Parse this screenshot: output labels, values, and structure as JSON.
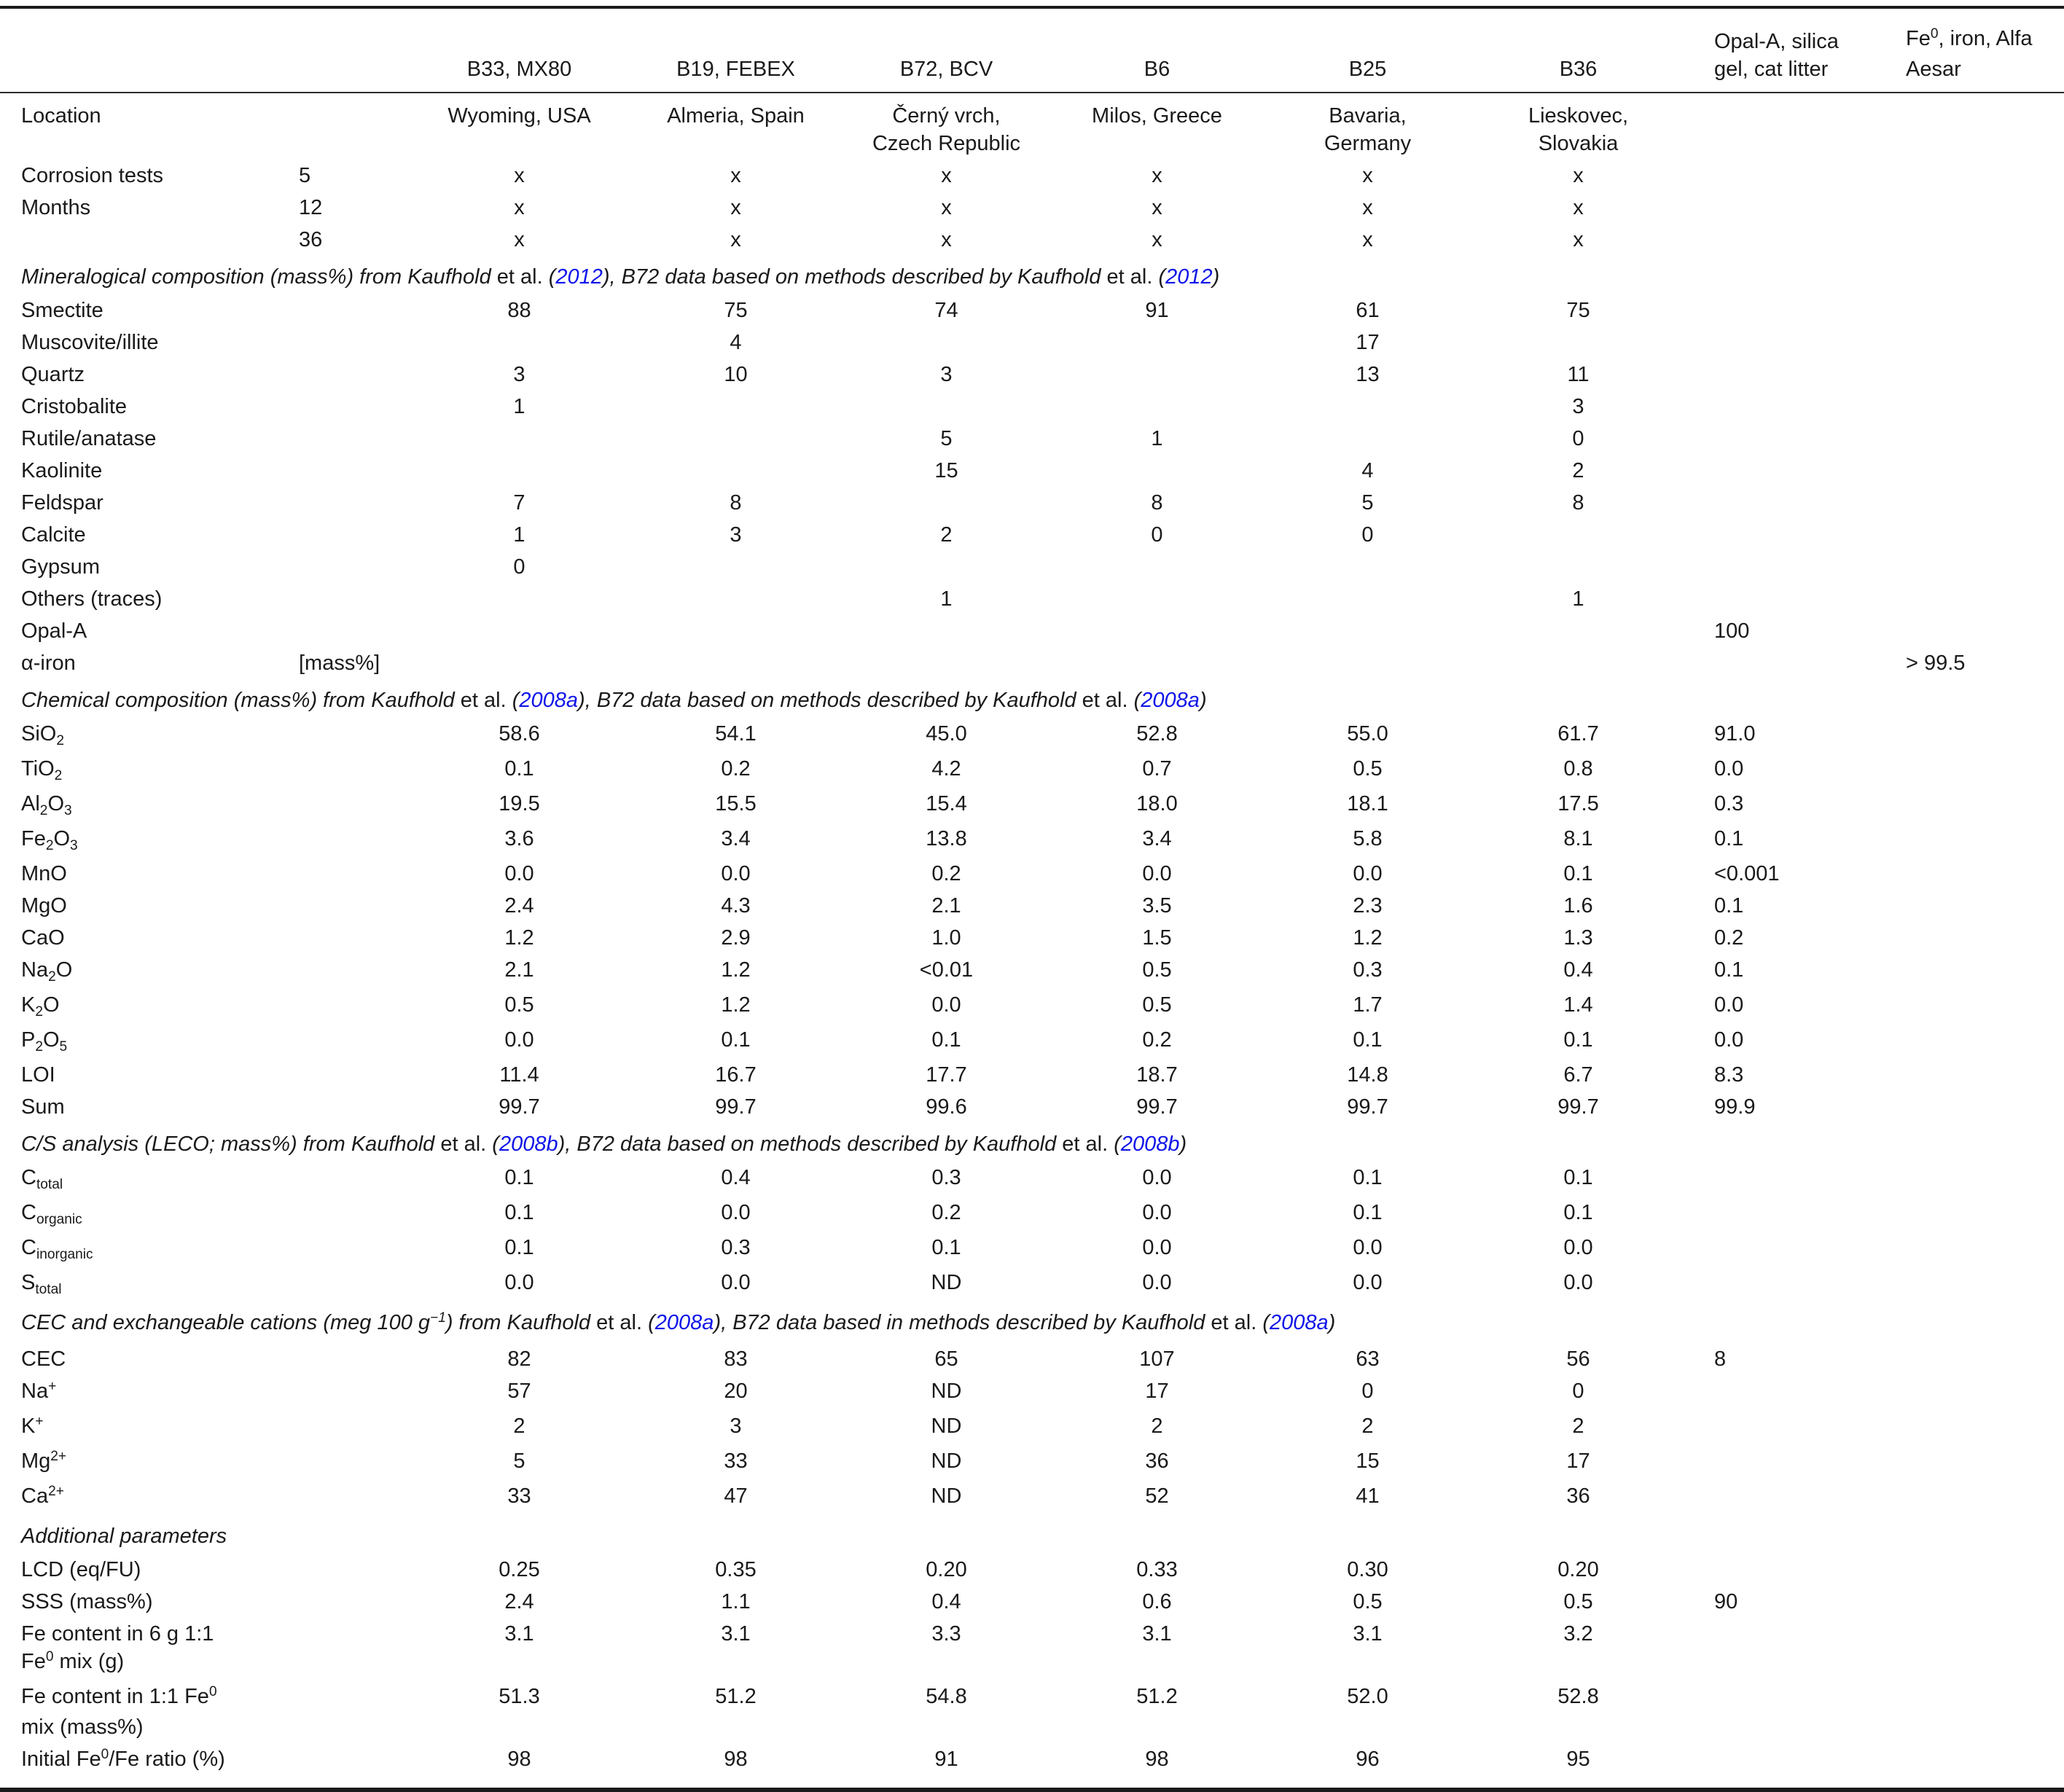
{
  "page": {
    "background": "#ffffff",
    "text_color": "#1a1a1a",
    "citation_link_color": "#0f14e8",
    "rule_color": "#1b1b1b"
  },
  "table": {
    "header_cols": [
      "",
      "",
      "B33, MX80",
      "B19, FEBEX",
      "B72, BCV",
      "B6",
      "B25",
      "B36",
      {
        "segs": [
          {
            "t": "Opal-A, silica"
          },
          {
            "br": true
          },
          {
            "t": "gel, cat litter"
          }
        ]
      },
      {
        "segs": [
          {
            "t": "Fe"
          },
          {
            "t": "0",
            "sup": true
          },
          {
            "t": ", iron, Alfa"
          },
          {
            "br": true
          },
          {
            "t": "Aesar"
          }
        ]
      }
    ],
    "rows": [
      {
        "kind": "data",
        "label": "Location",
        "sub": "",
        "cells": [
          "Wyoming, USA",
          "Almeria, Spain",
          "Černý vrch,\nCzech Republic",
          "Milos, Greece",
          "Bavaria,\nGermany",
          "Lieskovec,\nSlovakia",
          "",
          ""
        ]
      },
      {
        "kind": "data",
        "label": "Corrosion tests",
        "sub": "5",
        "cells": [
          "x",
          "x",
          "x",
          "x",
          "x",
          "x",
          "",
          ""
        ]
      },
      {
        "kind": "data",
        "label": "Months",
        "sub": "12",
        "cells": [
          "x",
          "x",
          "x",
          "x",
          "x",
          "x",
          "",
          ""
        ]
      },
      {
        "kind": "data",
        "label": "",
        "sub": "36",
        "cells": [
          "x",
          "x",
          "x",
          "x",
          "x",
          "x",
          "",
          ""
        ]
      },
      {
        "kind": "section",
        "segs": [
          {
            "t": "Mineralogical composition (mass%) from Kaufhold ",
            "i": true
          },
          {
            "t": "et al. "
          },
          {
            "t": "(",
            "i": true
          },
          {
            "t": "2012",
            "i": true,
            "link": true
          },
          {
            "t": "), B72 data based on methods described by Kaufhold ",
            "i": true
          },
          {
            "t": "et al. "
          },
          {
            "t": "(",
            "i": true
          },
          {
            "t": "2012",
            "i": true,
            "link": true
          },
          {
            "t": ")",
            "i": true
          }
        ]
      },
      {
        "kind": "data",
        "label": "Smectite",
        "sub": "",
        "cells": [
          "88",
          "75",
          "74",
          "91",
          "61",
          "75",
          "",
          ""
        ]
      },
      {
        "kind": "data",
        "label": "Muscovite/illite",
        "sub": "",
        "cells": [
          "",
          "4",
          "",
          "",
          "17",
          "",
          "",
          ""
        ]
      },
      {
        "kind": "data",
        "label": "Quartz",
        "sub": "",
        "cells": [
          "3",
          "10",
          "3",
          "",
          "13",
          "11",
          "",
          ""
        ]
      },
      {
        "kind": "data",
        "label": "Cristobalite",
        "sub": "",
        "cells": [
          "1",
          "",
          "",
          "",
          "",
          "3",
          "",
          ""
        ]
      },
      {
        "kind": "data",
        "label": "Rutile/anatase",
        "sub": "",
        "cells": [
          "",
          "",
          "5",
          "1",
          "",
          "0",
          "",
          ""
        ]
      },
      {
        "kind": "data",
        "label": "Kaolinite",
        "sub": "",
        "cells": [
          "",
          "",
          "15",
          "",
          "4",
          "2",
          "",
          ""
        ]
      },
      {
        "kind": "data",
        "label": "Feldspar",
        "sub": "",
        "cells": [
          "7",
          "8",
          "",
          "8",
          "5",
          "8",
          "",
          ""
        ]
      },
      {
        "kind": "data",
        "label": "Calcite",
        "sub": "",
        "cells": [
          "1",
          "3",
          "2",
          "0",
          "0",
          "",
          "",
          ""
        ]
      },
      {
        "kind": "data",
        "label": "Gypsum",
        "sub": "",
        "cells": [
          "0",
          "",
          "",
          "",
          "",
          "",
          "",
          ""
        ]
      },
      {
        "kind": "data",
        "label": "Others (traces)",
        "sub": "",
        "cells": [
          "",
          "",
          "1",
          "",
          "",
          "1",
          "",
          ""
        ]
      },
      {
        "kind": "data",
        "label": "Opal-A",
        "sub": "",
        "cells": [
          "",
          "",
          "",
          "",
          "",
          "",
          "100",
          ""
        ]
      },
      {
        "kind": "data",
        "label": "α-iron",
        "sub": "[mass%]",
        "cells": [
          "",
          "",
          "",
          "",
          "",
          "",
          "",
          "> 99.5"
        ]
      },
      {
        "kind": "section",
        "segs": [
          {
            "t": "Chemical composition (mass%) from Kaufhold ",
            "i": true
          },
          {
            "t": "et al. "
          },
          {
            "t": "(",
            "i": true
          },
          {
            "t": "2008a",
            "i": true,
            "link": true
          },
          {
            "t": "), B72 data based on methods described by Kaufhold ",
            "i": true
          },
          {
            "t": "et al. "
          },
          {
            "t": "(",
            "i": true
          },
          {
            "t": "2008a",
            "i": true,
            "link": true
          },
          {
            "t": ")",
            "i": true
          }
        ]
      },
      {
        "kind": "data",
        "label": {
          "segs": [
            {
              "t": "SiO"
            },
            {
              "t": "2",
              "sub": true
            }
          ]
        },
        "sub": "",
        "cells": [
          "58.6",
          "54.1",
          "45.0",
          "52.8",
          "55.0",
          "61.7",
          "91.0",
          ""
        ]
      },
      {
        "kind": "data",
        "label": {
          "segs": [
            {
              "t": "TiO"
            },
            {
              "t": "2",
              "sub": true
            }
          ]
        },
        "sub": "",
        "cells": [
          "0.1",
          "0.2",
          "4.2",
          "0.7",
          "0.5",
          "0.8",
          "0.0",
          ""
        ]
      },
      {
        "kind": "data",
        "label": {
          "segs": [
            {
              "t": "Al"
            },
            {
              "t": "2",
              "sub": true
            },
            {
              "t": "O"
            },
            {
              "t": "3",
              "sub": true
            }
          ]
        },
        "sub": "",
        "cells": [
          "19.5",
          "15.5",
          "15.4",
          "18.0",
          "18.1",
          "17.5",
          "0.3",
          ""
        ]
      },
      {
        "kind": "data",
        "label": {
          "segs": [
            {
              "t": "Fe"
            },
            {
              "t": "2",
              "sub": true
            },
            {
              "t": "O"
            },
            {
              "t": "3",
              "sub": true
            }
          ]
        },
        "sub": "",
        "cells": [
          "3.6",
          "3.4",
          "13.8",
          "3.4",
          "5.8",
          "8.1",
          "0.1",
          ""
        ]
      },
      {
        "kind": "data",
        "label": "MnO",
        "sub": "",
        "cells": [
          "0.0",
          "0.0",
          "0.2",
          "0.0",
          "0.0",
          "0.1",
          "<0.001",
          ""
        ]
      },
      {
        "kind": "data",
        "label": "MgO",
        "sub": "",
        "cells": [
          "2.4",
          "4.3",
          "2.1",
          "3.5",
          "2.3",
          "1.6",
          "0.1",
          ""
        ]
      },
      {
        "kind": "data",
        "label": "CaO",
        "sub": "",
        "cells": [
          "1.2",
          "2.9",
          "1.0",
          "1.5",
          "1.2",
          "1.3",
          "0.2",
          ""
        ]
      },
      {
        "kind": "data",
        "label": {
          "segs": [
            {
              "t": "Na"
            },
            {
              "t": "2",
              "sub": true
            },
            {
              "t": "O"
            }
          ]
        },
        "sub": "",
        "cells": [
          "2.1",
          "1.2",
          "<0.01",
          "0.5",
          "0.3",
          "0.4",
          "0.1",
          ""
        ]
      },
      {
        "kind": "data",
        "label": {
          "segs": [
            {
              "t": "K"
            },
            {
              "t": "2",
              "sub": true
            },
            {
              "t": "O"
            }
          ]
        },
        "sub": "",
        "cells": [
          "0.5",
          "1.2",
          "0.0",
          "0.5",
          "1.7",
          "1.4",
          "0.0",
          ""
        ]
      },
      {
        "kind": "data",
        "label": {
          "segs": [
            {
              "t": "P"
            },
            {
              "t": "2",
              "sub": true
            },
            {
              "t": "O"
            },
            {
              "t": "5",
              "sub": true
            }
          ]
        },
        "sub": "",
        "cells": [
          "0.0",
          "0.1",
          "0.1",
          "0.2",
          "0.1",
          "0.1",
          "0.0",
          ""
        ]
      },
      {
        "kind": "data",
        "label": "LOI",
        "sub": "",
        "cells": [
          "11.4",
          "16.7",
          "17.7",
          "18.7",
          "14.8",
          "6.7",
          "8.3",
          ""
        ]
      },
      {
        "kind": "data",
        "label": "Sum",
        "sub": "",
        "cells": [
          "99.7",
          "99.7",
          "99.6",
          "99.7",
          "99.7",
          "99.7",
          "99.9",
          ""
        ]
      },
      {
        "kind": "section",
        "segs": [
          {
            "t": "C/S analysis (LECO; mass%) from Kaufhold ",
            "i": true
          },
          {
            "t": "et al. "
          },
          {
            "t": "(",
            "i": true
          },
          {
            "t": "2008b",
            "i": true,
            "link": true
          },
          {
            "t": "), B72 data based on methods described by Kaufhold ",
            "i": true
          },
          {
            "t": "et al. "
          },
          {
            "t": "(",
            "i": true
          },
          {
            "t": "2008b",
            "i": true,
            "link": true
          },
          {
            "t": ")",
            "i": true
          }
        ]
      },
      {
        "kind": "data",
        "label": {
          "segs": [
            {
              "t": "C"
            },
            {
              "t": "total",
              "sub": true
            }
          ]
        },
        "sub": "",
        "cells": [
          "0.1",
          "0.4",
          "0.3",
          "0.0",
          "0.1",
          "0.1",
          "",
          ""
        ]
      },
      {
        "kind": "data",
        "label": {
          "segs": [
            {
              "t": "C"
            },
            {
              "t": "organic",
              "sub": true
            }
          ]
        },
        "sub": "",
        "cells": [
          "0.1",
          "0.0",
          "0.2",
          "0.0",
          "0.1",
          "0.1",
          "",
          ""
        ]
      },
      {
        "kind": "data",
        "label": {
          "segs": [
            {
              "t": "C"
            },
            {
              "t": "inorganic",
              "sub": true
            }
          ]
        },
        "sub": "",
        "cells": [
          "0.1",
          "0.3",
          "0.1",
          "0.0",
          "0.0",
          "0.0",
          "",
          ""
        ]
      },
      {
        "kind": "data",
        "label": {
          "segs": [
            {
              "t": "S"
            },
            {
              "t": "total",
              "sub": true
            }
          ]
        },
        "sub": "",
        "cells": [
          "0.0",
          "0.0",
          "ND",
          "0.0",
          "0.0",
          "0.0",
          "",
          ""
        ]
      },
      {
        "kind": "section",
        "segs": [
          {
            "t": "CEC and exchangeable cations (meg 100 g",
            "i": true
          },
          {
            "t": "−1",
            "sup": true,
            "i": true
          },
          {
            "t": ") from Kaufhold ",
            "i": true
          },
          {
            "t": "et al. "
          },
          {
            "t": "(",
            "i": true
          },
          {
            "t": "2008a",
            "i": true,
            "link": true
          },
          {
            "t": "), B72 data based in methods described by Kaufhold ",
            "i": true
          },
          {
            "t": "et al. "
          },
          {
            "t": "(",
            "i": true
          },
          {
            "t": "2008a",
            "i": true,
            "link": true
          },
          {
            "t": ")",
            "i": true
          }
        ]
      },
      {
        "kind": "data",
        "label": "CEC",
        "sub": "",
        "cells": [
          "82",
          "83",
          "65",
          "107",
          "63",
          "56",
          "8",
          ""
        ]
      },
      {
        "kind": "data",
        "label": {
          "segs": [
            {
              "t": "Na"
            },
            {
              "t": "+",
              "sup": true
            }
          ]
        },
        "sub": "",
        "cells": [
          "57",
          "20",
          "ND",
          "17",
          "0",
          "0",
          "",
          ""
        ]
      },
      {
        "kind": "data",
        "label": {
          "segs": [
            {
              "t": "K"
            },
            {
              "t": "+",
              "sup": true
            }
          ]
        },
        "sub": "",
        "cells": [
          "2",
          "3",
          "ND",
          "2",
          "2",
          "2",
          "",
          ""
        ]
      },
      {
        "kind": "data",
        "label": {
          "segs": [
            {
              "t": "Mg"
            },
            {
              "t": "2+",
              "sup": true
            }
          ]
        },
        "sub": "",
        "cells": [
          "5",
          "33",
          "ND",
          "36",
          "15",
          "17",
          "",
          ""
        ]
      },
      {
        "kind": "data",
        "label": {
          "segs": [
            {
              "t": "Ca"
            },
            {
              "t": "2+",
              "sup": true
            }
          ]
        },
        "sub": "",
        "cells": [
          "33",
          "47",
          "ND",
          "52",
          "41",
          "36",
          "",
          ""
        ]
      },
      {
        "kind": "section",
        "segs": [
          {
            "t": "Additional parameters",
            "i": true
          }
        ]
      },
      {
        "kind": "data",
        "label": "LCD (eq/FU)",
        "sub": "",
        "cells": [
          "0.25",
          "0.35",
          "0.20",
          "0.33",
          "0.30",
          "0.20",
          "",
          ""
        ]
      },
      {
        "kind": "data",
        "label": "SSS (mass%)",
        "sub": "",
        "cells": [
          "2.4",
          "1.1",
          "0.4",
          "0.6",
          "0.5",
          "0.5",
          "90",
          ""
        ]
      },
      {
        "kind": "data",
        "label": {
          "segs": [
            {
              "t": "Fe content in 6 g 1:1"
            },
            {
              "br": true
            },
            {
              "t": "Fe"
            },
            {
              "t": "0",
              "sup": true
            },
            {
              "t": " mix (g)"
            }
          ]
        },
        "sub": "",
        "cells": [
          "3.1",
          "3.1",
          "3.3",
          "3.1",
          "3.1",
          "3.2",
          "",
          ""
        ]
      },
      {
        "kind": "data",
        "label": {
          "segs": [
            {
              "t": "Fe content in 1:1 Fe"
            },
            {
              "t": "0",
              "sup": true
            },
            {
              "br": true
            },
            {
              "t": "mix (mass%)"
            }
          ]
        },
        "sub": "",
        "cells": [
          "51.3",
          "51.2",
          "54.8",
          "51.2",
          "52.0",
          "52.8",
          "",
          ""
        ]
      },
      {
        "kind": "data",
        "label": {
          "segs": [
            {
              "t": "Initial Fe"
            },
            {
              "t": "0",
              "sup": true
            },
            {
              "t": "/Fe ratio (%)"
            }
          ]
        },
        "sub": "",
        "cells": [
          "98",
          "98",
          "91",
          "98",
          "96",
          "95",
          "",
          ""
        ]
      }
    ]
  }
}
